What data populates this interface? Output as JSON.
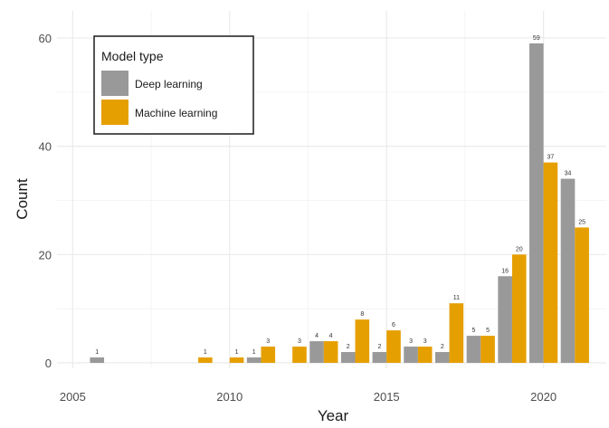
{
  "chart_data": {
    "type": "bar",
    "xlabel": "Year",
    "ylabel": "Count",
    "xlim": [
      2004.5,
      2022
    ],
    "ylim": [
      -1,
      65
    ],
    "x_ticks": [
      2005,
      2010,
      2015,
      2020
    ],
    "x_minor_ticks": [
      2007.5,
      2012.5,
      2017.5
    ],
    "y_ticks": [
      0,
      20,
      40,
      60
    ],
    "y_minor_ticks": [
      10,
      30,
      50
    ],
    "grid": true,
    "legend": {
      "title": "Model type",
      "position": "top-left"
    },
    "series": [
      {
        "name": "Deep learning",
        "color": "#999999",
        "points": [
          {
            "x": 2006,
            "y": 1
          },
          {
            "x": 2011,
            "y": 1
          },
          {
            "x": 2013,
            "y": 4
          },
          {
            "x": 2014,
            "y": 2
          },
          {
            "x": 2015,
            "y": 2
          },
          {
            "x": 2016,
            "y": 3
          },
          {
            "x": 2017,
            "y": 2
          },
          {
            "x": 2018,
            "y": 5
          },
          {
            "x": 2019,
            "y": 16
          },
          {
            "x": 2020,
            "y": 59
          },
          {
            "x": 2021,
            "y": 34
          }
        ]
      },
      {
        "name": "Machine learning",
        "color": "#E69F00",
        "points": [
          {
            "x": 2009,
            "y": 1
          },
          {
            "x": 2010,
            "y": 1
          },
          {
            "x": 2011,
            "y": 3
          },
          {
            "x": 2012,
            "y": 3
          },
          {
            "x": 2013,
            "y": 4
          },
          {
            "x": 2014,
            "y": 8
          },
          {
            "x": 2015,
            "y": 6
          },
          {
            "x": 2016,
            "y": 3
          },
          {
            "x": 2017,
            "y": 11
          },
          {
            "x": 2018,
            "y": 5
          },
          {
            "x": 2019,
            "y": 20
          },
          {
            "x": 2020,
            "y": 37
          },
          {
            "x": 2021,
            "y": 25
          }
        ]
      }
    ]
  }
}
